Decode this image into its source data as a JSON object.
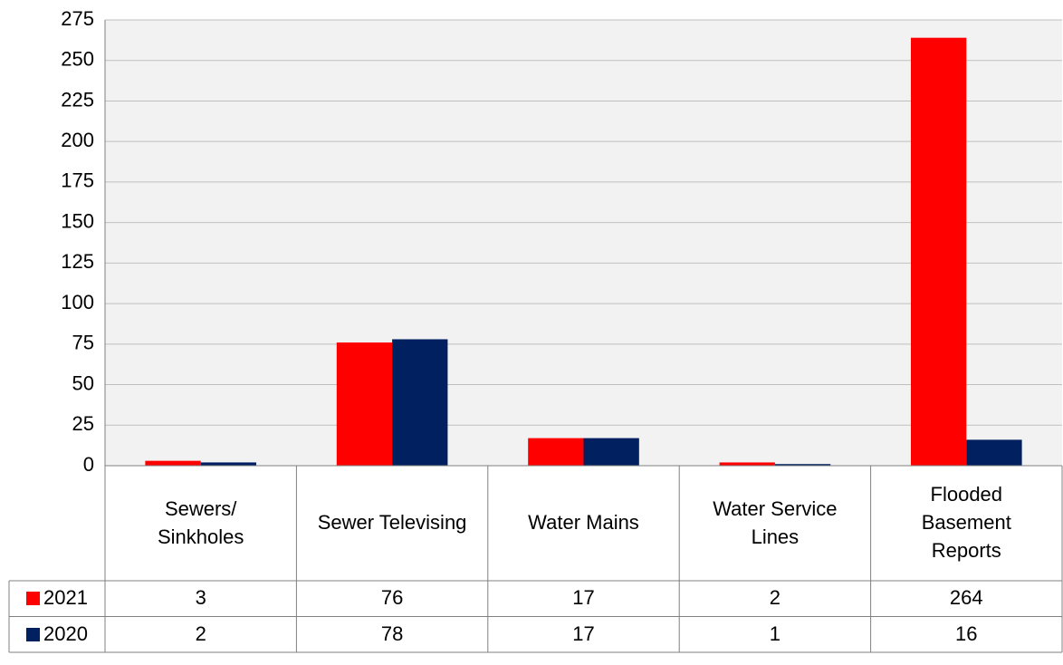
{
  "chart_data": {
    "type": "bar",
    "categories": [
      "Sewers/ Sinkholes",
      "Sewer Televising",
      "Water Mains",
      "Water Service Lines",
      "Flooded Basement Reports"
    ],
    "series": [
      {
        "name": "2021",
        "color": "#ff0000",
        "values": [
          3,
          76,
          17,
          2,
          264
        ]
      },
      {
        "name": "2020",
        "color": "#002060",
        "values": [
          2,
          78,
          17,
          1,
          16
        ]
      }
    ],
    "ylim": [
      0,
      275
    ],
    "yticks": [
      0,
      25,
      50,
      75,
      100,
      125,
      150,
      175,
      200,
      225,
      250,
      275
    ],
    "grid": true,
    "data_table": true
  }
}
